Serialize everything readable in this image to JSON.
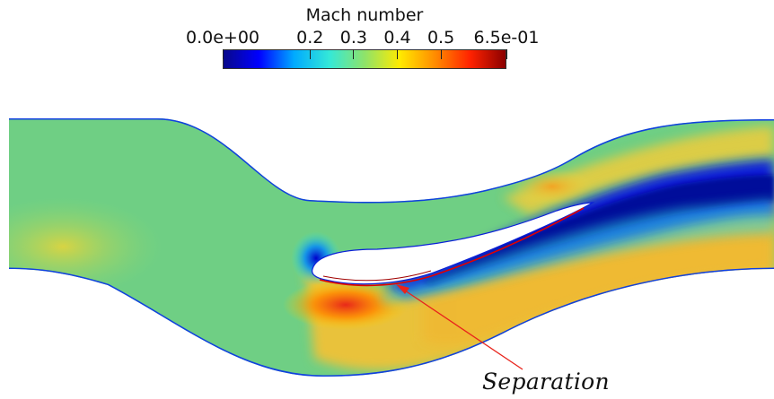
{
  "colorbar": {
    "title": "Mach number",
    "range": [
      0.0,
      0.65
    ],
    "ticks": [
      {
        "label": "0.0e+00",
        "value": 0.0
      },
      {
        "label": "0.2",
        "value": 0.2
      },
      {
        "label": "0.3",
        "value": 0.3
      },
      {
        "label": "0.4",
        "value": 0.4
      },
      {
        "label": "0.5",
        "value": 0.5
      },
      {
        "label": "6.5e-01",
        "value": 0.65
      }
    ],
    "colors": [
      "#08088a",
      "#0000ff",
      "#00aaff",
      "#34e8d8",
      "#8ee36a",
      "#ffea00",
      "#ff8c00",
      "#ff2200",
      "#8b0000"
    ]
  },
  "annotation": {
    "label": "Separation",
    "color": "#e8241c"
  }
}
